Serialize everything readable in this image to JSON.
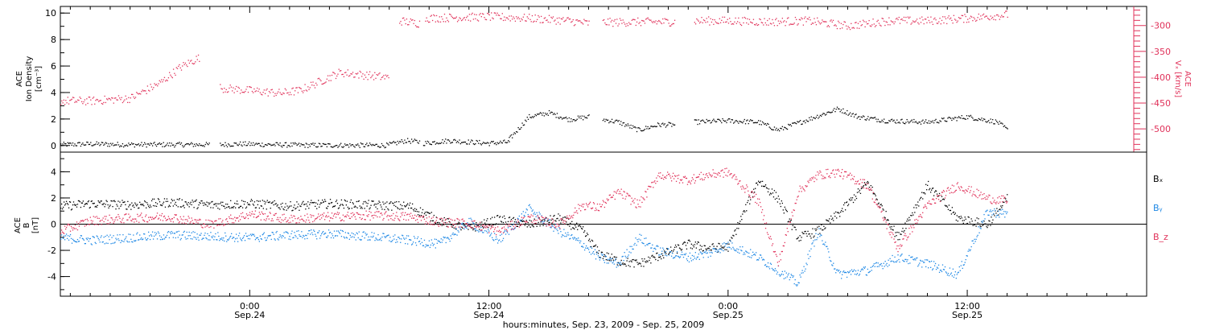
{
  "colors": {
    "black": "#000000",
    "magenta": "#e0325a",
    "blue": "#1e88e5"
  },
  "xaxis": {
    "title": "hours:minutes, Sep. 23, 2009 - Sep. 25, 2009",
    "ticks": [
      {
        "time": "0:00",
        "date": "Sep.24",
        "hours": 24
      },
      {
        "time": "12:00",
        "date": "Sep.24",
        "hours": 36
      },
      {
        "time": "0:00",
        "date": "Sep.25",
        "hours": 48
      },
      {
        "time": "12:00",
        "date": "Sep.25",
        "hours": 60
      }
    ]
  },
  "chart_data": [
    {
      "type": "scatter",
      "panel": "top",
      "xlim_hours": [
        14.5,
        69
      ],
      "left_axis": {
        "label_lines": [
          "ACE",
          "Ion Density",
          "[cm⁻³]"
        ],
        "ylim": [
          -0.5,
          10.5
        ],
        "ticks": [
          0,
          2,
          4,
          6,
          8,
          10
        ],
        "color": "#000000"
      },
      "right_axis": {
        "label_lines": [
          "ACE",
          "Vₓ [km/s]"
        ],
        "ylim": [
          -545,
          -263
        ],
        "ticks": [
          -300,
          -350,
          -400,
          -450,
          -500
        ],
        "color": "#e0325a"
      },
      "series": [
        {
          "axis": "left",
          "color": "#000000",
          "segments": [
            {
              "x": [
                14.5,
                16,
                18,
                19.5,
                20.5,
                22
              ],
              "y": [
                0.1,
                0.15,
                0.1,
                0.1,
                0.1,
                0.1
              ]
            },
            {
              "x": [
                22.5,
                23.5,
                25,
                27,
                29,
                31
              ],
              "y": [
                0.1,
                0.15,
                0.1,
                0.05,
                0.05,
                0.05
              ]
            },
            {
              "x": [
                31,
                31.8,
                32.5
              ],
              "y": [
                0.1,
                0.4,
                0.3
              ]
            },
            {
              "x": [
                32.7,
                34,
                35,
                36,
                37
              ],
              "y": [
                0.2,
                0.4,
                0.3,
                0.2,
                0.3
              ]
            },
            {
              "x": [
                37,
                38,
                39,
                40,
                41
              ],
              "y": [
                0.5,
                2.2,
                2.5,
                2.0,
                2.2
              ]
            },
            {
              "x": [
                41.7,
                42.5,
                43.5,
                44.5,
                45.3
              ],
              "y": [
                2.0,
                1.8,
                1.2,
                1.6,
                1.6
              ]
            },
            {
              "x": [
                46.3,
                48,
                49.5,
                50.5,
                52,
                53.5,
                54.5,
                56,
                58,
                60,
                61.5,
                62
              ],
              "y": [
                1.8,
                1.9,
                1.8,
                1.2,
                2.0,
                2.8,
                2.2,
                1.9,
                1.8,
                2.2,
                1.8,
                1.2
              ]
            }
          ]
        },
        {
          "axis": "right",
          "color": "#e0325a",
          "segments": [
            {
              "x": [
                14.5,
                16,
                18,
                19.5,
                20.5,
                21.5
              ],
              "y": [
                -445,
                -445,
                -440,
                -410,
                -380,
                -360
              ]
            },
            {
              "x": [
                22.5,
                24,
                25.5,
                26.5,
                28.5,
                31
              ],
              "y": [
                -420,
                -425,
                -430,
                -425,
                -390,
                -400
              ]
            },
            {
              "x": [
                31.5,
                32.5
              ],
              "y": [
                -290,
                -295
              ]
            },
            {
              "x": [
                32.8,
                36,
                38,
                40,
                41
              ],
              "y": [
                -285,
                -282,
                -285,
                -290,
                -295
              ]
            },
            {
              "x": [
                41.7,
                44,
                45.3
              ],
              "y": [
                -293,
                -292,
                -292
              ]
            },
            {
              "x": [
                46.3,
                48,
                50,
                52,
                54,
                56,
                58,
                60,
                62
              ],
              "y": [
                -290,
                -290,
                -292,
                -290,
                -300,
                -290,
                -290,
                -285,
                -278
              ]
            }
          ]
        }
      ]
    },
    {
      "type": "scatter",
      "panel": "bottom",
      "xlim_hours": [
        14.5,
        69
      ],
      "left_axis": {
        "label_lines": [
          "ACE",
          "B",
          "[nT]"
        ],
        "ylim": [
          -5.5,
          5.5
        ],
        "ticks": [
          -4,
          -2,
          0,
          2,
          4
        ],
        "color": "#000000"
      },
      "zero_line": 0,
      "legend_position": "right",
      "series": [
        {
          "name": "Bₓ",
          "color": "#000000",
          "x": [
            14.5,
            16,
            18,
            20,
            22,
            24,
            26,
            28,
            30,
            32,
            33.5,
            35,
            36.5,
            38,
            39.5,
            40.7,
            41.5,
            42.5,
            43.5,
            44.5,
            46,
            47,
            48,
            49.5,
            50.5,
            51.5,
            52.5,
            53.5,
            55,
            56.5,
            58,
            59.5,
            61,
            62
          ],
          "y": [
            1.4,
            1.6,
            1.5,
            1.7,
            1.5,
            1.6,
            1.4,
            1.6,
            1.5,
            1.4,
            0.3,
            -0.3,
            0.4,
            0.0,
            0.5,
            -0.5,
            -2.2,
            -2.8,
            -3.0,
            -2.4,
            -1.5,
            -1.8,
            -1.7,
            3.4,
            2.0,
            -1.0,
            -0.5,
            0.8,
            3.2,
            -1.0,
            3.0,
            0.5,
            0.0,
            2.0
          ]
        },
        {
          "name": "Bᵧ",
          "color": "#1e88e5",
          "x": [
            14.5,
            16,
            18,
            20,
            22,
            24,
            26,
            28,
            30,
            32,
            33.5,
            35,
            36.5,
            38,
            39.5,
            40.7,
            41.5,
            42.5,
            43.5,
            44.5,
            46,
            47,
            48,
            49.5,
            50.5,
            51.5,
            52.5,
            53.5,
            55,
            56.5,
            58,
            59.5,
            61,
            62
          ],
          "y": [
            -1.0,
            -1.2,
            -1.0,
            -0.8,
            -0.9,
            -1.0,
            -0.8,
            -0.7,
            -0.9,
            -1.2,
            -1.5,
            0.2,
            -1.2,
            1.2,
            -0.5,
            -1.5,
            -2.5,
            -3.0,
            -1.0,
            -2.0,
            -2.5,
            -2.2,
            -1.5,
            -2.5,
            -3.5,
            -4.5,
            -0.5,
            -3.8,
            -3.5,
            -2.5,
            -3.0,
            -3.8,
            1.0,
            0.8
          ]
        },
        {
          "name": "B_z",
          "color": "#e0325a",
          "x": [
            14.5,
            16,
            18,
            20,
            22,
            24,
            26,
            28,
            30,
            32,
            33.5,
            35,
            36.5,
            38,
            39.5,
            40.7,
            41.5,
            42.5,
            43.5,
            44.5,
            46,
            47,
            48,
            49.5,
            50.5,
            51.5,
            52.5,
            53.5,
            55,
            56.5,
            58,
            59.5,
            61,
            62
          ],
          "y": [
            -0.5,
            0.3,
            0.5,
            0.6,
            0.0,
            0.8,
            0.4,
            0.6,
            0.7,
            0.6,
            0.2,
            0.1,
            -0.5,
            0.5,
            0.0,
            1.5,
            1.3,
            2.5,
            1.5,
            3.8,
            3.4,
            3.8,
            4.0,
            1.8,
            -3.0,
            2.5,
            3.8,
            4.0,
            3.0,
            -1.8,
            1.5,
            3.0,
            2.0,
            1.8
          ]
        }
      ]
    }
  ]
}
